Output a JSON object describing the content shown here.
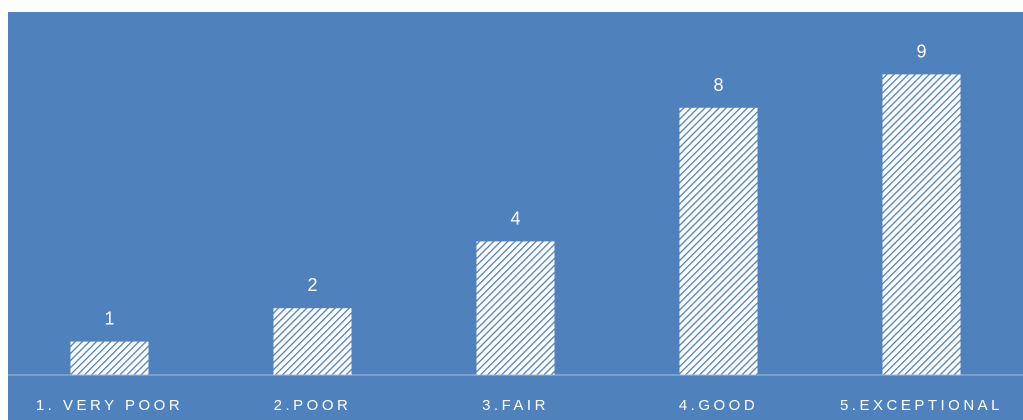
{
  "chart_data": {
    "type": "bar",
    "categories": [
      "1. VERY POOR",
      "2.POOR",
      "3.FAIR",
      "4.GOOD",
      "5.EXCEPTIONAL"
    ],
    "values": [
      1,
      2,
      4,
      8,
      9
    ],
    "title": "",
    "xlabel": "",
    "ylabel": "",
    "ylim": [
      0,
      9
    ],
    "grid": false,
    "data_labels": true,
    "colors": {
      "background": "#4f81bd",
      "bar_fill": "#ffffff",
      "bar_hatch": "#4f81bd",
      "axis_line": "#a6bfdf",
      "text": "#ffffff"
    },
    "bar_pattern": "diagonal-hatch"
  }
}
